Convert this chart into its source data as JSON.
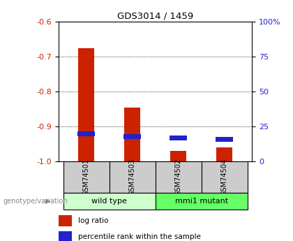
{
  "title": "GDS3014 / 1459",
  "samples": [
    "GSM74501",
    "GSM74503",
    "GSM74502",
    "GSM74504"
  ],
  "log_ratio": [
    -0.675,
    -0.845,
    -0.97,
    -0.96
  ],
  "percentile_rank": [
    20,
    18,
    17,
    16
  ],
  "groups": [
    {
      "label": "wild type",
      "indices": [
        0,
        1
      ],
      "color": "#ccffcc"
    },
    {
      "label": "mmi1 mutant",
      "indices": [
        2,
        3
      ],
      "color": "#66ff66"
    }
  ],
  "ylim_left": [
    -1.0,
    -0.6
  ],
  "ylim_right": [
    0,
    100
  ],
  "left_ticks": [
    -1.0,
    -0.9,
    -0.8,
    -0.7,
    -0.6
  ],
  "right_ticks": [
    0,
    25,
    50,
    75,
    100
  ],
  "bar_color_red": "#cc2200",
  "bar_color_blue": "#2222cc",
  "label_area_color": "#cccccc",
  "genotype_label": "genotype/variation",
  "legend_red": "log ratio",
  "legend_blue": "percentile rank within the sample",
  "left_color": "#cc2200",
  "right_color": "#2222cc"
}
